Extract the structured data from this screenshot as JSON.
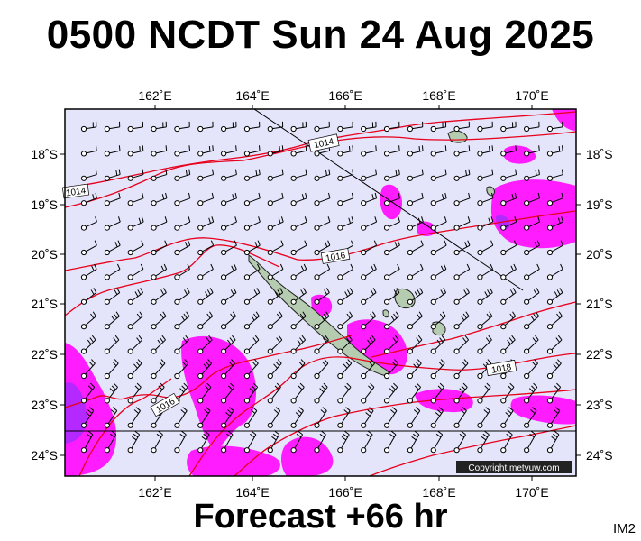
{
  "header": {
    "title": "0500 NCDT Sun 24 Aug 2025"
  },
  "footer": {
    "forecast": "Forecast +66 hr",
    "product": "IM2"
  },
  "map": {
    "extent": {
      "lon_min": 160.0,
      "lon_max": 171.0,
      "lat_min": -24.4,
      "lat_max": -17.1
    },
    "lon_ticks": [
      162,
      164,
      166,
      168,
      170
    ],
    "lat_ticks": [
      -18,
      -19,
      -20,
      -21,
      -22,
      -23,
      -24
    ],
    "lon_tick_labels": [
      "162˚E",
      "164˚E",
      "166˚E",
      "168˚E",
      "170˚E"
    ],
    "lat_tick_labels": [
      "18˚S",
      "19˚S",
      "20˚S",
      "21˚S",
      "22˚S",
      "23˚S",
      "24˚S"
    ],
    "isobar_labels": [
      "1014",
      "1014",
      "1016",
      "1016",
      "1018"
    ],
    "copyright": "Copyright metvuw.com",
    "colors": {
      "sea": "#e4e4fa",
      "isobar": "#e8001c",
      "rain_light": "#ff1cff",
      "rain_heavy": "#b429ff",
      "land": "#b6ccb0",
      "barb": "#000000"
    }
  }
}
